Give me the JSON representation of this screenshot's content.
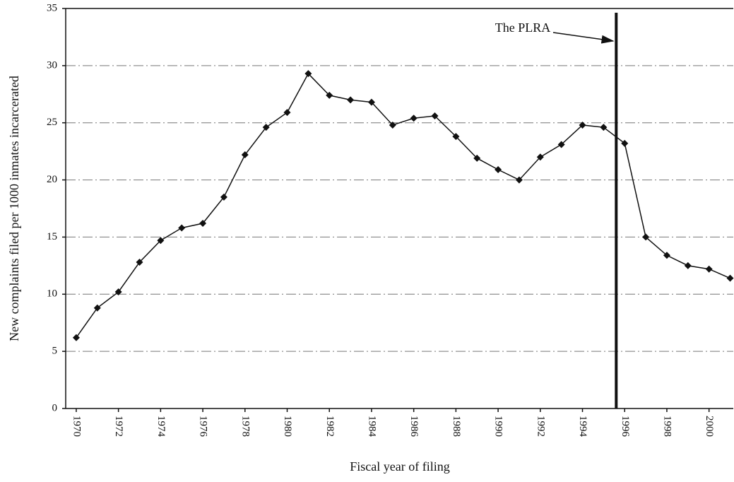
{
  "chart_data": {
    "type": "line",
    "y_label": "New complaints filed per 1000 inmates incarcerated",
    "x_label": "Fiscal year of filing",
    "x": [
      1970,
      1971,
      1972,
      1973,
      1974,
      1975,
      1976,
      1977,
      1978,
      1979,
      1980,
      1981,
      1982,
      1983,
      1984,
      1985,
      1986,
      1987,
      1988,
      1989,
      1990,
      1991,
      1992,
      1993,
      1994,
      1995,
      1996,
      1997,
      1998,
      1999,
      2000,
      2001
    ],
    "series": [
      {
        "color": "#111111",
        "values": [
          6.2,
          8.8,
          10.2,
          12.8,
          14.7,
          15.8,
          16.2,
          18.5,
          22.2,
          24.6,
          25.9,
          29.3,
          27.4,
          27.0,
          26.8,
          24.8,
          25.4,
          25.6,
          23.8,
          21.9,
          20.9,
          20.0,
          22.0,
          23.1,
          24.8,
          24.6,
          23.2,
          15.0,
          13.4,
          12.5,
          12.2,
          11.4
        ]
      }
    ],
    "xlim": [
      1969.5,
      2001.15
    ],
    "xticks": [
      1970,
      1972,
      1974,
      1976,
      1978,
      1980,
      1982,
      1984,
      1986,
      1988,
      1990,
      1992,
      1994,
      1996,
      1998,
      2000
    ],
    "ylim": [
      0,
      35
    ],
    "yticks": [
      0,
      5,
      10,
      15,
      20,
      25,
      30,
      35
    ],
    "grid": true,
    "annotations": [
      {
        "text": "The PLRA",
        "x": 1995.6
      }
    ]
  }
}
